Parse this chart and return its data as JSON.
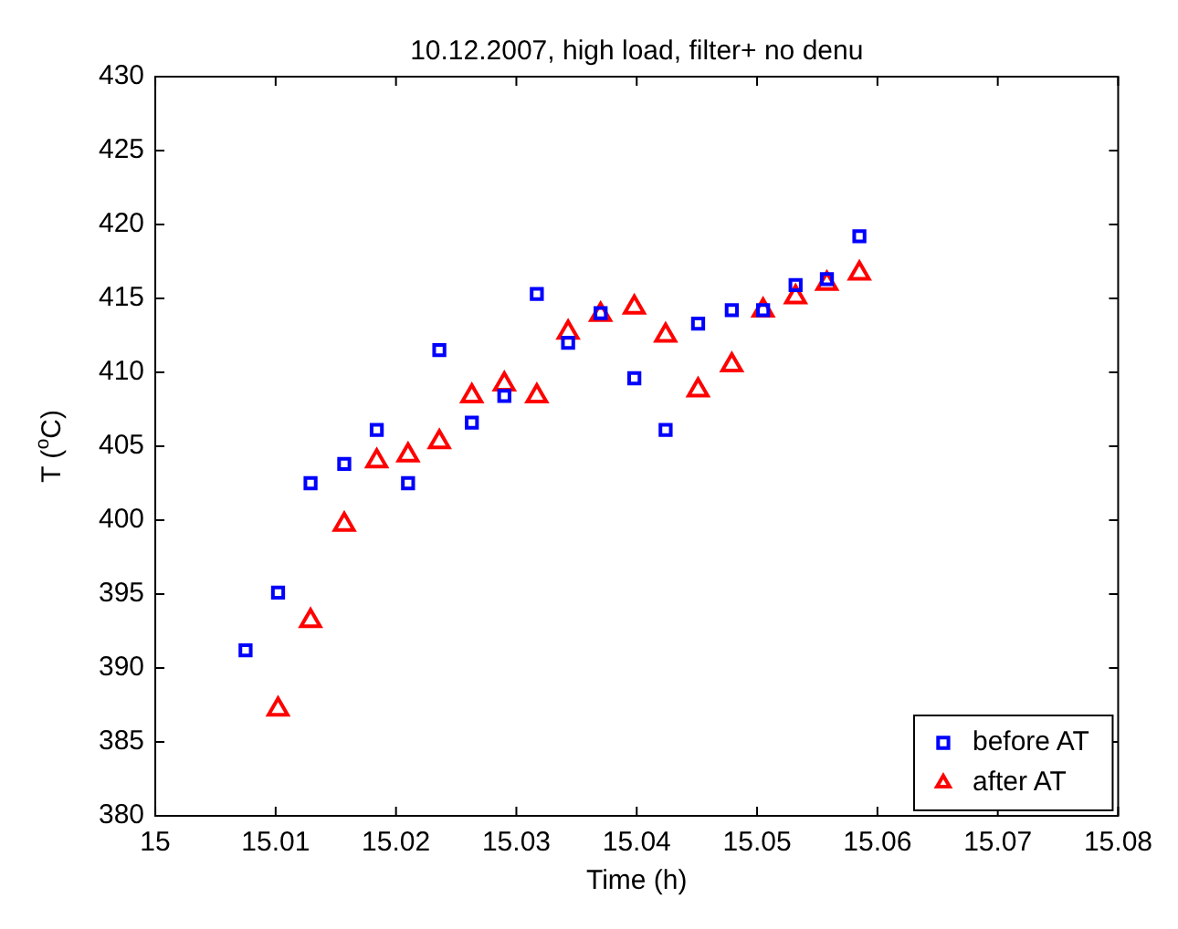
{
  "chart_data": {
    "type": "scatter",
    "title": "10.12.2007, high load, filter+ no denu",
    "xlabel": "Time (h)",
    "ylabel": "T ($^{o}$C)",
    "xlim": [
      15,
      15.08
    ],
    "xticks": [
      15,
      15.01,
      15.02,
      15.03,
      15.04,
      15.05,
      15.06,
      15.07,
      15.08
    ],
    "ylim": [
      380,
      430
    ],
    "yticks": [
      380,
      385,
      390,
      395,
      400,
      405,
      410,
      415,
      420,
      425,
      430
    ],
    "grid": false,
    "legend": "bottom right",
    "series": [
      {
        "name": "before AT",
        "color": "#0000ff",
        "marker": "square",
        "x": [
          15.0075,
          15.0102,
          15.0129,
          15.0157,
          15.0184,
          15.021,
          15.0236,
          15.0263,
          15.029,
          15.0317,
          15.0343,
          15.037,
          15.0398,
          15.0424,
          15.0451,
          15.0479,
          15.0505,
          15.0532,
          15.0558,
          15.0585
        ],
        "values": [
          391.2,
          395.1,
          402.5,
          403.8,
          406.1,
          402.5,
          411.5,
          406.6,
          408.4,
          415.3,
          412.0,
          414.0,
          409.6,
          406.1,
          413.3,
          414.2,
          414.2,
          415.9,
          416.3,
          419.2
        ]
      },
      {
        "name": "after AT",
        "color": "#ff0000",
        "marker": "triangle",
        "x": [
          15.0102,
          15.0129,
          15.0157,
          15.0184,
          15.021,
          15.0236,
          15.0263,
          15.029,
          15.0317,
          15.0343,
          15.037,
          15.0398,
          15.0424,
          15.0451,
          15.0479,
          15.0505,
          15.0532,
          15.0558,
          15.0585
        ],
        "values": [
          387.2,
          393.2,
          399.7,
          404.0,
          404.4,
          405.3,
          408.4,
          409.2,
          408.4,
          412.7,
          413.9,
          414.4,
          412.5,
          408.8,
          410.5,
          414.2,
          415.1,
          416.0,
          416.7
        ]
      }
    ]
  }
}
